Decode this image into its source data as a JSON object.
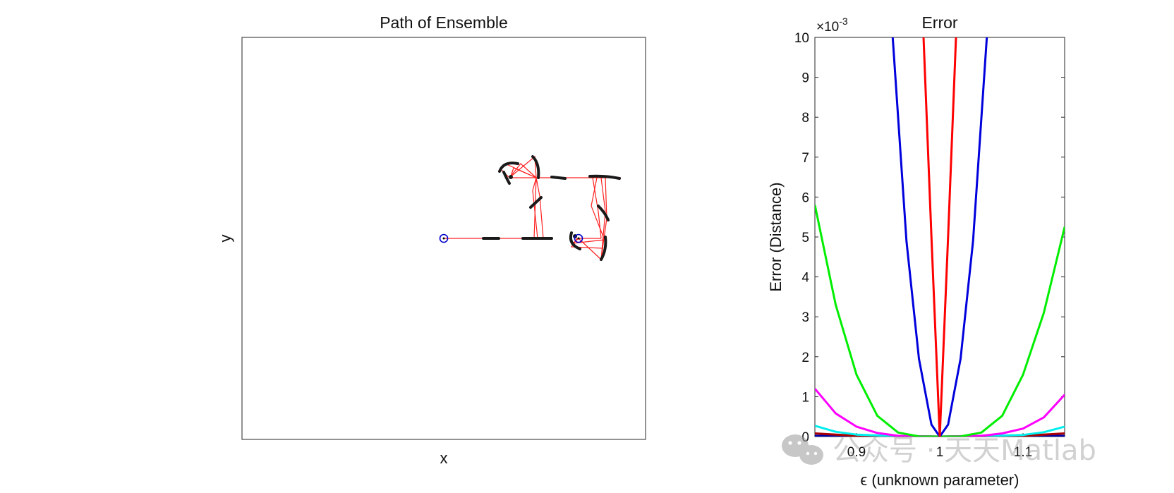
{
  "chart_data": [
    {
      "type": "line",
      "title": "Path of Ensemble",
      "xlabel": "x",
      "ylabel": "y",
      "grid": false,
      "note_colors": {
        "path": "#ff2020",
        "arc": "#1a1a1a",
        "endpoint": "#0000cc"
      }
    },
    {
      "type": "line",
      "title": "Error",
      "xlabel": "ϵ (unknown parameter)",
      "ylabel": "Error (Distance)",
      "multiplier": "×10",
      "multiplier_exp": "-3",
      "xlim": [
        0.85,
        1.15
      ],
      "ylim": [
        0,
        10
      ],
      "xticks": [
        "0.9",
        "1",
        "1.1"
      ],
      "yticks": [
        "0",
        "1",
        "2",
        "3",
        "4",
        "5",
        "6",
        "7",
        "8",
        "9",
        "10"
      ],
      "grid": false,
      "series": [
        {
          "color": "#ff0000",
          "x": [
            1.0,
            0.99,
            0.9805
          ],
          "y": [
            0,
            5,
            10
          ]
        },
        {
          "color": "#ff0000",
          "x": [
            1.0,
            1.01,
            1.0195
          ],
          "y": [
            0,
            5,
            10
          ]
        },
        {
          "color": "#0000dd",
          "x": [
            0.9435,
            0.96,
            0.975,
            0.99,
            1.0,
            1.01,
            1.025,
            1.04,
            1.0565
          ],
          "y": [
            10,
            4.9,
            1.95,
            0.3,
            0,
            0.3,
            1.95,
            4.9,
            10
          ]
        },
        {
          "color": "#00ee00",
          "x": [
            0.85,
            0.875,
            0.9,
            0.925,
            0.95,
            0.975,
            1.0,
            1.025,
            1.05,
            1.075,
            1.1,
            1.125,
            1.15
          ],
          "y": [
            5.8,
            3.3,
            1.55,
            0.52,
            0.1,
            0.005,
            0,
            0.005,
            0.1,
            0.52,
            1.55,
            3.1,
            5.25
          ]
        },
        {
          "color": "#ff00ff",
          "x": [
            0.85,
            0.875,
            0.9,
            0.925,
            0.95,
            1.0,
            1.05,
            1.075,
            1.1,
            1.125,
            1.15
          ],
          "y": [
            1.2,
            0.58,
            0.25,
            0.09,
            0.02,
            0,
            0.02,
            0.08,
            0.2,
            0.48,
            1.05
          ]
        },
        {
          "color": "#00eeee",
          "x": [
            0.85,
            0.875,
            0.9,
            0.95,
            1.0,
            1.05,
            1.1,
            1.125,
            1.15
          ],
          "y": [
            0.27,
            0.12,
            0.05,
            0.01,
            0,
            0.01,
            0.04,
            0.11,
            0.25
          ]
        },
        {
          "color": "#aa0000",
          "x": [
            0.85,
            0.9,
            1.0,
            1.1,
            1.15
          ],
          "y": [
            0.08,
            0.02,
            0,
            0.02,
            0.08
          ]
        },
        {
          "color": "#0000aa",
          "x": [
            0.85,
            1.0,
            1.15
          ],
          "y": [
            0.02,
            0,
            0.02
          ]
        }
      ]
    }
  ],
  "watermark": "公众号 · 天天Matlab"
}
